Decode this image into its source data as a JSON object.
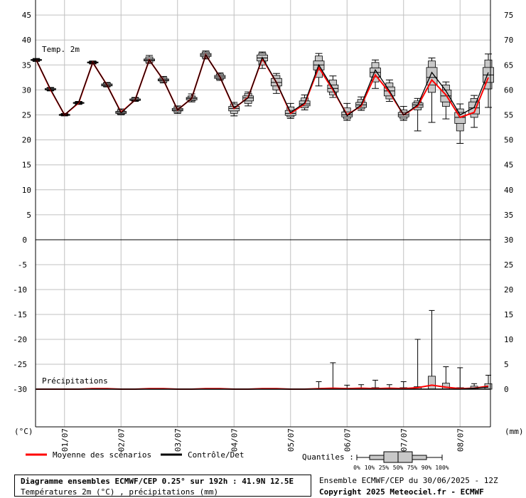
{
  "chart_data": [
    {
      "type": "line",
      "title": "Temp. 2m",
      "y_left_ticks": [
        5,
        10,
        15,
        20,
        25,
        30,
        35,
        40,
        45
      ],
      "y_right_ticks": [
        35,
        40,
        45,
        50,
        55,
        60,
        65,
        70,
        75
      ],
      "ylim": [
        0,
        48
      ],
      "date_labels": [
        "01/07",
        "02/07",
        "03/07",
        "04/07",
        "05/07",
        "06/07",
        "07/07",
        "08/07"
      ],
      "x_hours": [
        0,
        6,
        12,
        18,
        24,
        30,
        36,
        42,
        48,
        54,
        60,
        66,
        72,
        78,
        84,
        90,
        96,
        102,
        108,
        114,
        120,
        126,
        132,
        138,
        144,
        150,
        156,
        162,
        168,
        174,
        180,
        186,
        192
      ],
      "mean": [
        36,
        30.1,
        25,
        27.4,
        35.5,
        31,
        25.5,
        28,
        36,
        32,
        26,
        28.3,
        37,
        32.6,
        26.3,
        28.5,
        36.3,
        31.5,
        25.3,
        27.2,
        34.5,
        30,
        25,
        26.8,
        33,
        29.5,
        25,
        26.8,
        32,
        29,
        24.5,
        25.5,
        32.5
      ],
      "control": [
        36,
        30.2,
        25,
        27.5,
        35.5,
        31,
        25.4,
        28,
        36,
        32,
        26,
        28.3,
        37,
        32.6,
        26.4,
        28.4,
        36.5,
        31.5,
        25.5,
        27.4,
        35,
        30.3,
        24.8,
        27,
        34,
        29.8,
        25,
        27,
        33.5,
        29.8,
        25,
        26.5,
        33.5
      ],
      "boxes": [
        {
          "h": 0,
          "min": 35.7,
          "p10": 35.8,
          "p25": 35.9,
          "p50": 36,
          "p75": 36.1,
          "p90": 36.2,
          "max": 36.3
        },
        {
          "h": 6,
          "min": 29.8,
          "p10": 29.9,
          "p25": 30,
          "p50": 30.1,
          "p75": 30.3,
          "p90": 30.4,
          "max": 30.5
        },
        {
          "h": 12,
          "min": 24.8,
          "p10": 24.9,
          "p25": 24.9,
          "p50": 25,
          "p75": 25.1,
          "p90": 25.2,
          "max": 25.3
        },
        {
          "h": 18,
          "min": 27.1,
          "p10": 27.2,
          "p25": 27.3,
          "p50": 27.4,
          "p75": 27.5,
          "p90": 27.6,
          "max": 27.7
        },
        {
          "h": 24,
          "min": 35.2,
          "p10": 35.3,
          "p25": 35.4,
          "p50": 35.5,
          "p75": 35.6,
          "p90": 35.7,
          "max": 35.8
        },
        {
          "h": 30,
          "min": 30.6,
          "p10": 30.7,
          "p25": 30.8,
          "p50": 31,
          "p75": 31.2,
          "p90": 31.4,
          "max": 31.5
        },
        {
          "h": 36,
          "min": 25,
          "p10": 25.1,
          "p25": 25.3,
          "p50": 25.5,
          "p75": 25.7,
          "p90": 26,
          "max": 26.2
        },
        {
          "h": 42,
          "min": 27.7,
          "p10": 27.8,
          "p25": 27.9,
          "p50": 28,
          "p75": 28.2,
          "p90": 28.4,
          "max": 28.5
        },
        {
          "h": 48,
          "min": 35.3,
          "p10": 35.5,
          "p25": 35.8,
          "p50": 36,
          "p75": 36.2,
          "p90": 36.6,
          "max": 36.9
        },
        {
          "h": 54,
          "min": 31.4,
          "p10": 31.6,
          "p25": 31.8,
          "p50": 32,
          "p75": 32.2,
          "p90": 32.5,
          "max": 32.7
        },
        {
          "h": 60,
          "min": 25.3,
          "p10": 25.5,
          "p25": 25.8,
          "p50": 26,
          "p75": 26.3,
          "p90": 26.6,
          "max": 26.8
        },
        {
          "h": 66,
          "min": 27.6,
          "p10": 27.8,
          "p25": 28,
          "p50": 28.3,
          "p75": 28.5,
          "p90": 28.8,
          "max": 29.2
        },
        {
          "h": 72,
          "min": 36.2,
          "p10": 36.4,
          "p25": 36.7,
          "p50": 37,
          "p75": 37.3,
          "p90": 37.6,
          "max": 37.8
        },
        {
          "h": 78,
          "min": 31.9,
          "p10": 32.1,
          "p25": 32.3,
          "p50": 32.6,
          "p75": 32.9,
          "p90": 33.2,
          "max": 33.4
        },
        {
          "h": 84,
          "min": 24.8,
          "p10": 25.3,
          "p25": 25.8,
          "p50": 26.3,
          "p75": 26.7,
          "p90": 27.2,
          "max": 27.5
        },
        {
          "h": 90,
          "min": 26.8,
          "p10": 27.3,
          "p25": 27.8,
          "p50": 28.4,
          "p75": 28.8,
          "p90": 29.3,
          "max": 29.6
        },
        {
          "h": 96,
          "min": 34.3,
          "p10": 35,
          "p25": 35.8,
          "p50": 36.4,
          "p75": 37,
          "p90": 37.4,
          "max": 37.6
        },
        {
          "h": 102,
          "min": 29.3,
          "p10": 30,
          "p25": 30.8,
          "p50": 31.5,
          "p75": 32.3,
          "p90": 32.9,
          "max": 33.3
        },
        {
          "h": 108,
          "min": 24.3,
          "p10": 24.6,
          "p25": 24.9,
          "p50": 25.3,
          "p75": 25.9,
          "p90": 26.6,
          "max": 27.3
        },
        {
          "h": 114,
          "min": 26,
          "p10": 26.4,
          "p25": 26.8,
          "p50": 27.2,
          "p75": 27.8,
          "p90": 28.4,
          "max": 29
        },
        {
          "h": 120,
          "min": 30.8,
          "p10": 32.5,
          "p25": 34,
          "p50": 35,
          "p75": 35.8,
          "p90": 36.8,
          "max": 37.3
        },
        {
          "h": 126,
          "min": 28.5,
          "p10": 29,
          "p25": 29.6,
          "p50": 30.3,
          "p75": 31,
          "p90": 32,
          "max": 32.8
        },
        {
          "h": 132,
          "min": 23.9,
          "p10": 24.2,
          "p25": 24.6,
          "p50": 25,
          "p75": 25.6,
          "p90": 26.4,
          "max": 27.3
        },
        {
          "h": 138,
          "min": 25.9,
          "p10": 26.2,
          "p25": 26.5,
          "p50": 27,
          "p75": 27.5,
          "p90": 28.1,
          "max": 28.6
        },
        {
          "h": 144,
          "min": 30.3,
          "p10": 31.6,
          "p25": 32.6,
          "p50": 33.5,
          "p75": 34.4,
          "p90": 35.5,
          "max": 36
        },
        {
          "h": 150,
          "min": 27.7,
          "p10": 28.2,
          "p25": 28.8,
          "p50": 29.8,
          "p75": 30.6,
          "p90": 31.4,
          "max": 32
        },
        {
          "h": 156,
          "min": 23.9,
          "p10": 24.2,
          "p25": 24.6,
          "p50": 25,
          "p75": 25.5,
          "p90": 26,
          "max": 26.7
        },
        {
          "h": 162,
          "min": 21.8,
          "p10": 26,
          "p25": 26.5,
          "p50": 27,
          "p75": 27.4,
          "p90": 27.8,
          "max": 28.3
        },
        {
          "h": 168,
          "min": 23.5,
          "p10": 29.5,
          "p25": 31,
          "p50": 32.5,
          "p75": 34.5,
          "p90": 35.8,
          "max": 36.4
        },
        {
          "h": 174,
          "min": 24.2,
          "p10": 26.7,
          "p25": 27.6,
          "p50": 28.8,
          "p75": 30,
          "p90": 31,
          "max": 31.6
        },
        {
          "h": 180,
          "min": 19.3,
          "p10": 21.8,
          "p25": 23.3,
          "p50": 24.5,
          "p75": 25.5,
          "p90": 26.2,
          "max": 27.2
        },
        {
          "h": 186,
          "min": 22.5,
          "p10": 24.5,
          "p25": 25.2,
          "p50": 26.4,
          "p75": 27.6,
          "p90": 28.3,
          "max": 28.9
        },
        {
          "h": 192,
          "min": 26.5,
          "p10": 30.2,
          "p25": 31.5,
          "p50": 33,
          "p75": 34.5,
          "p90": 36,
          "max": 37.2
        }
      ]
    },
    {
      "type": "line",
      "title": "Précipitations",
      "y_left_ticks": [
        0,
        -5,
        -10,
        -15,
        -20,
        -25,
        -30
      ],
      "y_right_ticks": [
        30,
        25,
        20,
        15,
        10,
        5,
        0
      ],
      "ylim": [
        0,
        30
      ],
      "x_hours": [
        0,
        6,
        12,
        18,
        24,
        30,
        36,
        42,
        48,
        54,
        60,
        66,
        72,
        78,
        84,
        90,
        96,
        102,
        108,
        114,
        120,
        126,
        132,
        138,
        144,
        150,
        156,
        162,
        168,
        174,
        180,
        186,
        192
      ],
      "mean": [
        0,
        0,
        0,
        0,
        0.1,
        0.1,
        0,
        0,
        0.1,
        0.1,
        0,
        0,
        0.1,
        0.1,
        0,
        0,
        0.1,
        0.1,
        0,
        0,
        0.1,
        0.2,
        0.1,
        0.2,
        0.1,
        0.2,
        0.1,
        0.3,
        0.8,
        0.4,
        0.1,
        0.2,
        0.6
      ],
      "control": [
        0,
        0,
        0,
        0,
        0,
        0,
        0,
        0,
        0,
        0,
        0,
        0,
        0,
        0,
        0,
        0,
        0,
        0,
        0,
        0,
        0,
        0,
        0,
        0,
        0,
        0,
        0,
        0,
        0,
        0,
        0,
        0.2,
        0.4
      ],
      "boxes": [
        {
          "h": 120,
          "p90": 0.1,
          "max": 1.5
        },
        {
          "h": 126,
          "p90": 0.2,
          "max": 5.3
        },
        {
          "h": 132,
          "p90": 0.1,
          "max": 0.8
        },
        {
          "h": 138,
          "p90": 0.2,
          "max": 0.9
        },
        {
          "h": 144,
          "p90": 0.3,
          "max": 1.8
        },
        {
          "h": 150,
          "p90": 0.2,
          "max": 0.9
        },
        {
          "h": 156,
          "p90": 0.3,
          "max": 1.5
        },
        {
          "h": 162,
          "p90": 0.5,
          "max": 10
        },
        {
          "h": 168,
          "p90": 2.6,
          "max": 15.8
        },
        {
          "h": 174,
          "p90": 1.2,
          "max": 4.5
        },
        {
          "h": 180,
          "p90": 0.3,
          "max": 4.3
        },
        {
          "h": 186,
          "p90": 0.6,
          "max": 1.1
        },
        {
          "h": 192,
          "p90": 1.1,
          "max": 2.8
        }
      ]
    }
  ],
  "labels": {
    "temp_title": "Temp. 2m",
    "precip_title": "Précipitations",
    "unit_left": "(°C)",
    "unit_right": "(mm)",
    "legend_mean": "Moyenne des scénarios",
    "legend_control": "Contrôle/Det",
    "quantiles_label": "Quantiles :",
    "quantile_ticks": [
      "0%",
      "10%",
      "25%",
      "50%",
      "75%",
      "90%",
      "100%"
    ],
    "title_line1": "Diagramme ensembles ECMWF/CEP 0.25° sur 192h : 41.9N 12.5E",
    "title_line2": "Températures 2m (°C) , précipitations (mm)",
    "info_line1": "Ensemble ECMWF/CEP du 30/06/2025 - 12Z",
    "info_line2": "Copyright 2025 Meteociel.fr - ECMWF"
  },
  "colors": {
    "mean": "#ff0000",
    "control": "#000000",
    "box_fill": "#c8c8c8",
    "grid": "#c0c0c0"
  }
}
